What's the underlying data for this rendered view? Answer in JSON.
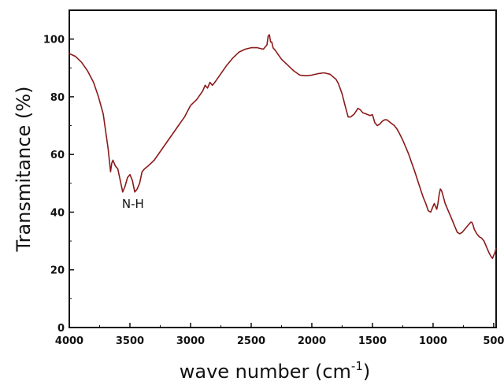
{
  "chart_data": {
    "type": "line",
    "title": "",
    "xlabel": "wave number (cm",
    "xlabel_superscript": "-1",
    "xlabel_suffix": ")",
    "ylabel": "Transmitance (%)",
    "xlim": [
      4000,
      480
    ],
    "ylim": [
      0,
      110
    ],
    "x_reversed": true,
    "x_ticks": [
      4000,
      3500,
      3000,
      2500,
      2000,
      1500,
      1000,
      500
    ],
    "y_ticks": [
      0,
      20,
      40,
      60,
      80,
      100
    ],
    "grid": false,
    "legend": "none",
    "line_color": "#8b1a1a",
    "annotations": [
      {
        "text": "N-H",
        "x": 3475,
        "y": 41.5
      }
    ],
    "series": [
      {
        "x": [
          4000,
          3950,
          3900,
          3850,
          3800,
          3760,
          3720,
          3700,
          3680,
          3660,
          3650,
          3640,
          3620,
          3600,
          3580,
          3560,
          3540,
          3520,
          3500,
          3480,
          3460,
          3440,
          3420,
          3400,
          3380,
          3350,
          3300,
          3250,
          3200,
          3150,
          3100,
          3050,
          3000,
          2950,
          2900,
          2880,
          2860,
          2840,
          2820,
          2800,
          2750,
          2700,
          2650,
          2600,
          2550,
          2500,
          2450,
          2400,
          2370,
          2360,
          2350,
          2340,
          2330,
          2320,
          2300,
          2250,
          2200,
          2150,
          2100,
          2050,
          2000,
          1950,
          1900,
          1850,
          1800,
          1780,
          1750,
          1720,
          1700,
          1680,
          1650,
          1620,
          1600,
          1580,
          1550,
          1520,
          1500,
          1480,
          1460,
          1440,
          1420,
          1400,
          1380,
          1350,
          1320,
          1300,
          1280,
          1250,
          1220,
          1200,
          1180,
          1150,
          1120,
          1100,
          1080,
          1060,
          1040,
          1020,
          1000,
          990,
          980,
          970,
          960,
          950,
          940,
          930,
          920,
          900,
          880,
          860,
          840,
          820,
          800,
          780,
          760,
          740,
          720,
          700,
          690,
          680,
          670,
          660,
          640,
          620,
          600,
          580,
          560,
          540,
          520,
          510,
          500,
          490,
          480
        ],
        "y": [
          95,
          94,
          92,
          89,
          85,
          80,
          74,
          68,
          62,
          54,
          57,
          58,
          56,
          55,
          51,
          47,
          49,
          52,
          53,
          51,
          47,
          48,
          50,
          54,
          55,
          56,
          58,
          61,
          64,
          67,
          70,
          73,
          77,
          79,
          82,
          84,
          83,
          85,
          84,
          85,
          88,
          91,
          93.5,
          95.5,
          96.5,
          97,
          97,
          96.5,
          98,
          101,
          101.5,
          99,
          99,
          97,
          96,
          93,
          91,
          89,
          87.5,
          87.3,
          87.5,
          88,
          88.3,
          87.8,
          86,
          84.5,
          81,
          76,
          73,
          73,
          74,
          76,
          75.5,
          74.5,
          74,
          73.5,
          73.8,
          71,
          70,
          70.5,
          71.5,
          72,
          72,
          71,
          70,
          69,
          67.5,
          65,
          62,
          60,
          57.5,
          54,
          50,
          47.5,
          45,
          43,
          40.5,
          40,
          42,
          43,
          42,
          41,
          43,
          46,
          48,
          47.5,
          46,
          43,
          41,
          39,
          37,
          35,
          33,
          32.5,
          33,
          34,
          35,
          36,
          36.5,
          36.5,
          35.5,
          34,
          32.5,
          31.5,
          31,
          30,
          28,
          26,
          24.5,
          24,
          25,
          26,
          27.5
        ]
      }
    ]
  }
}
